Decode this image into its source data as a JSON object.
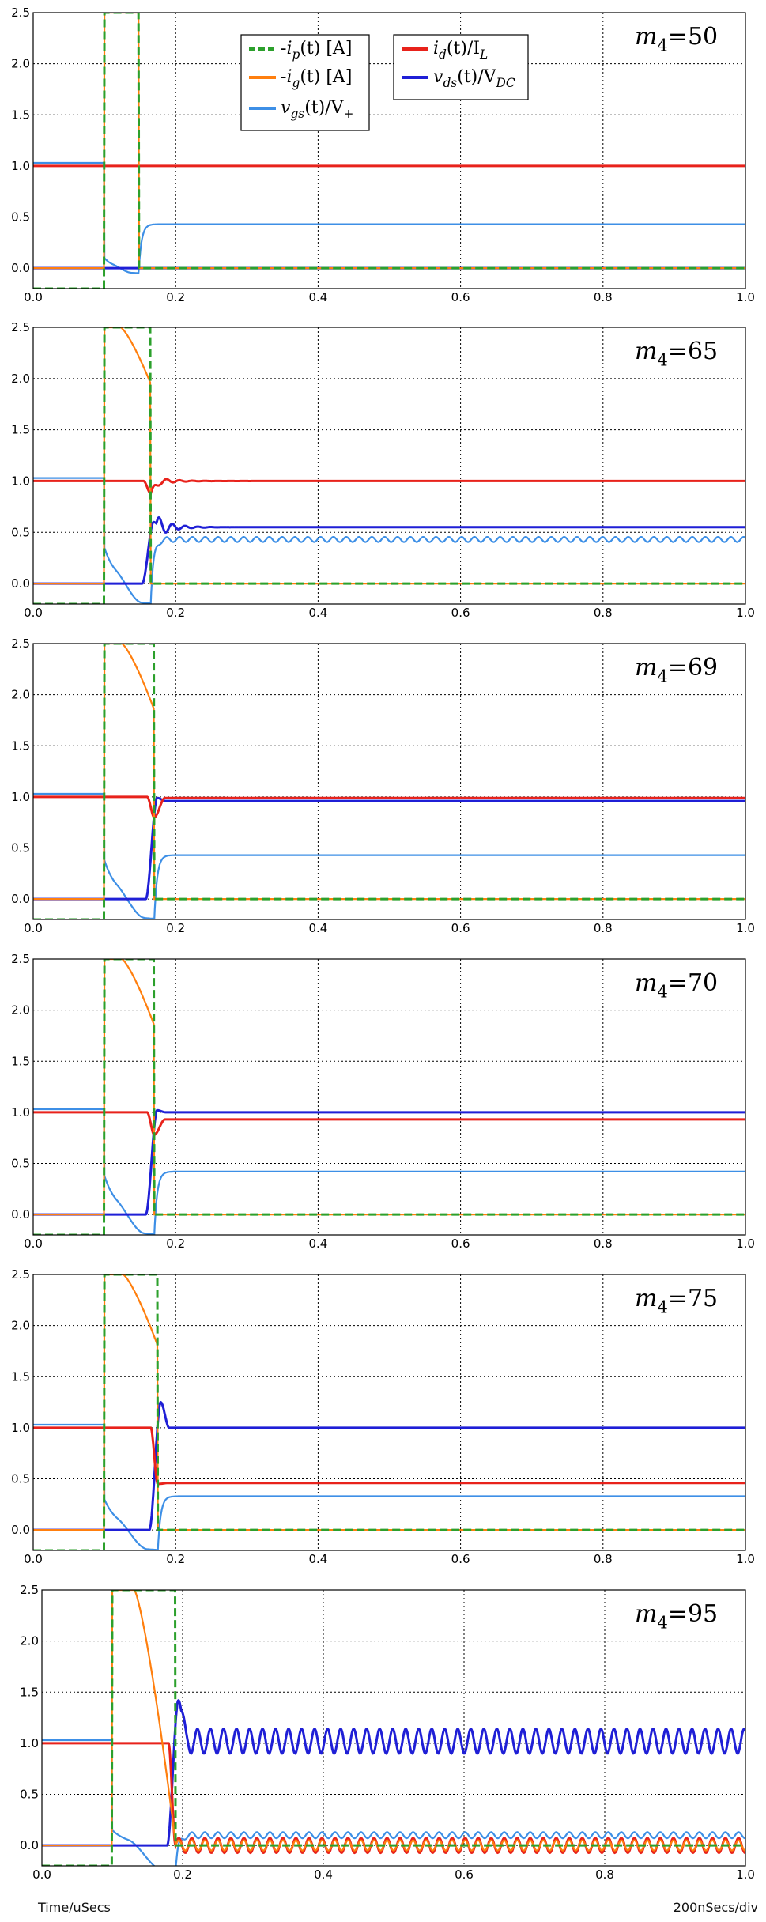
{
  "footer": {
    "xlabel": "Time/uSecs",
    "scale": "200nSecs/div"
  },
  "legend_labels": {
    "ip": "-i_p(t) [A]",
    "ig": "-i_g(t) [A]",
    "vgs": "v_gs(t)/V_+",
    "id": "i_d(t)/I_L",
    "vds": "v_ds(t)/V_DC"
  },
  "colors": {
    "ip": "#2ca02c",
    "ig": "#ff7f0e",
    "vgs": "#3d8fe6",
    "id": "#e8221b",
    "vds": "#1f1fd6"
  },
  "chart_data": [
    {
      "type": "line",
      "label": "m4=50",
      "grid": true,
      "xlim": [
        0,
        1.0
      ],
      "ylim": [
        -0.2,
        2.5
      ],
      "xticks": [
        "0.0",
        "0.2",
        "0.4",
        "0.6",
        "0.8",
        "1.0"
      ],
      "yticks": [
        "0.0",
        "0.5",
        "1.0",
        "1.5",
        "2.0",
        "2.5"
      ],
      "legend": "top",
      "params": {
        "t_on": 0.1,
        "t_off": 0.148,
        "ig_end": 2.5,
        "vgs_dip": -0.05,
        "vgs_final": 0.43,
        "vgs_transient": 0.1,
        "id_dip": 1.0,
        "id_final": 1.0,
        "vds_final": 0.0,
        "vds_overshoot": 0,
        "ring_amp": 0,
        "ring_period": 0.018,
        "ring_decay": 0.03,
        "ig_ring": 0
      }
    },
    {
      "type": "line",
      "label": "m4=65",
      "grid": true,
      "xlim": [
        0,
        1.0
      ],
      "ylim": [
        -0.2,
        2.5
      ],
      "xticks": [
        "0.0",
        "0.2",
        "0.4",
        "0.6",
        "0.8",
        "1.0"
      ],
      "yticks": [
        "0.0",
        "0.5",
        "1.0",
        "1.5",
        "2.0",
        "2.5"
      ],
      "params": {
        "t_on": 0.1,
        "t_off": 0.165,
        "ig_end": 1.95,
        "vgs_dip": -0.2,
        "vgs_final": 0.43,
        "vgs_transient": 0.35,
        "id_dip": 0.88,
        "id_final": 1.0,
        "vds_final": 0.55,
        "vds_overshoot": 0.05,
        "ring_amp": 0.1,
        "ring_period": 0.018,
        "ring_decay": 0.02,
        "ig_ring": 0
      }
    },
    {
      "type": "line",
      "label": "m4=69",
      "grid": true,
      "xlim": [
        0,
        1.0
      ],
      "ylim": [
        -0.2,
        2.5
      ],
      "xticks": [
        "0.0",
        "0.2",
        "0.4",
        "0.6",
        "0.8",
        "1.0"
      ],
      "yticks": [
        "0.0",
        "0.5",
        "1.0",
        "1.5",
        "2.0",
        "2.5"
      ],
      "params": {
        "t_on": 0.1,
        "t_off": 0.17,
        "ig_end": 1.85,
        "vgs_dip": -0.2,
        "vgs_final": 0.43,
        "vgs_transient": 0.38,
        "id_dip": 0.8,
        "id_final": 0.99,
        "vds_final": 0.96,
        "vds_overshoot": 0.03,
        "ring_amp": 0,
        "ring_period": 0.018,
        "ring_decay": 0.02,
        "ig_ring": 0
      }
    },
    {
      "type": "line",
      "label": "m4=70",
      "grid": true,
      "xlim": [
        0,
        1.0
      ],
      "ylim": [
        -0.2,
        2.5
      ],
      "xticks": [
        "0.0",
        "0.2",
        "0.4",
        "0.6",
        "0.8",
        "1.0"
      ],
      "yticks": [
        "0.0",
        "0.5",
        "1.0",
        "1.5",
        "2.0",
        "2.5"
      ],
      "params": {
        "t_on": 0.1,
        "t_off": 0.17,
        "ig_end": 1.85,
        "vgs_dip": -0.2,
        "vgs_final": 0.42,
        "vgs_transient": 0.38,
        "id_dip": 0.78,
        "id_final": 0.93,
        "vds_final": 1.0,
        "vds_overshoot": 0.02,
        "ring_amp": 0,
        "ring_period": 0.018,
        "ring_decay": 0.02,
        "ig_ring": 0
      }
    },
    {
      "type": "line",
      "label": "m4=75",
      "grid": true,
      "xlim": [
        0,
        1.0
      ],
      "ylim": [
        -0.2,
        2.5
      ],
      "xticks": [
        "0.0",
        "0.2",
        "0.4",
        "0.6",
        "0.8",
        "1.0"
      ],
      "yticks": [
        "0.0",
        "0.5",
        "1.0",
        "1.5",
        "2.0",
        "2.5"
      ],
      "params": {
        "t_on": 0.1,
        "t_off": 0.175,
        "ig_end": 1.8,
        "vgs_dip": -0.2,
        "vgs_final": 0.33,
        "vgs_transient": 0.3,
        "id_dip": 0.45,
        "id_final": 0.46,
        "vds_final": 1.0,
        "vds_overshoot": 0.25,
        "ring_amp": 0,
        "ring_period": 0.018,
        "ring_decay": 0.02,
        "ig_ring": 0
      }
    },
    {
      "type": "line",
      "label": "m4=95",
      "grid": true,
      "xlim": [
        0,
        1.0
      ],
      "ylim": [
        -0.2,
        2.5
      ],
      "xticks": [
        "0.0",
        "0.2",
        "0.4",
        "0.6",
        "0.8",
        "1.0"
      ],
      "yticks": [
        "0.0",
        "0.5",
        "1.0",
        "1.5",
        "2.0",
        "2.5"
      ],
      "params": {
        "t_on": 0.1,
        "t_off": 0.19,
        "ig_end": 0.02,
        "vgs_dip": -0.25,
        "vgs_final": 0.1,
        "vgs_transient": 0.15,
        "id_dip": 0.0,
        "id_final": 0.0,
        "vds_final": 1.02,
        "vds_overshoot": 0.4,
        "ring_amp": 0.12,
        "ring_period": 0.0185,
        "ring_decay": 999,
        "ig_ring": 0.05
      }
    }
  ]
}
